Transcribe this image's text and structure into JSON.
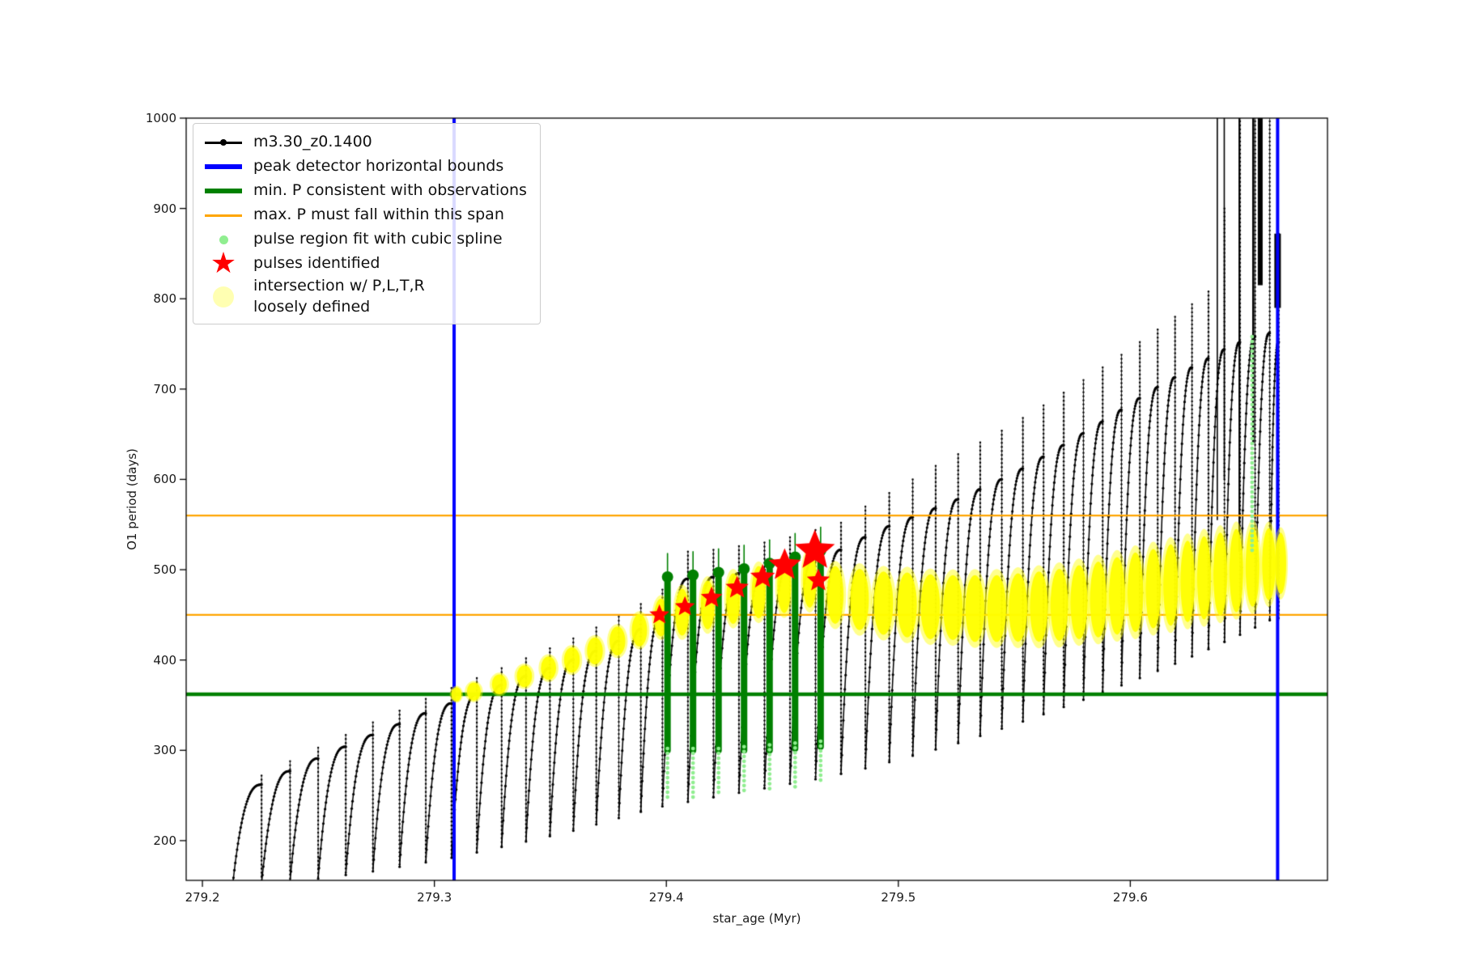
{
  "page": {
    "background": "#ffffff"
  },
  "chart_data": {
    "type": "scatter",
    "title": "",
    "xlabel": "star_age (Myr)",
    "ylabel": "O1 period (days)",
    "xlim": [
      279.193,
      279.685
    ],
    "ylim": [
      156,
      1000
    ],
    "grid": false,
    "xticks": {
      "values": [
        279.2,
        279.3,
        279.4,
        279.5,
        279.6
      ],
      "labels": [
        "279.2",
        "279.3",
        "279.4",
        "279.5",
        "279.6"
      ]
    },
    "yticks": {
      "values": [
        200,
        300,
        400,
        500,
        600,
        700,
        800,
        900,
        1000
      ],
      "labels": [
        "200",
        "300",
        "400",
        "500",
        "600",
        "700",
        "800",
        "900",
        "1000"
      ]
    },
    "colors": {
      "series": "#000000",
      "bounds": "#0000ff",
      "min_p": "#008000",
      "max_p_span": "#ffa500",
      "spline_fit": "#90ee90",
      "pulses": "#ff0000",
      "intersection": "#ffff00"
    },
    "legend": {
      "position": "upper-left",
      "entries": [
        {
          "label": "m3.30_z0.1400",
          "marker": "line-dot",
          "color": "#000000"
        },
        {
          "label": "peak detector horizontal bounds",
          "marker": "thick-line",
          "color": "#0000ff"
        },
        {
          "label": "min. P consistent with observations",
          "marker": "thick-line",
          "color": "#008000"
        },
        {
          "label": "max. P must fall within this span",
          "marker": "line",
          "color": "#ffa500"
        },
        {
          "label": "pulse region fit with cubic spline",
          "marker": "dot",
          "color": "#90ee90"
        },
        {
          "label": "pulses identified",
          "marker": "star",
          "color": "#ff0000"
        },
        {
          "label": "intersection w/ P,L,T,R\nloosely defined",
          "marker": "big-dot",
          "color": "#ffff00"
        }
      ]
    },
    "vlines": [
      {
        "x": 279.3085,
        "color": "#0000ff",
        "lw": 4
      },
      {
        "x": 279.6635,
        "color": "#0000ff",
        "lw": 4
      }
    ],
    "hlines": [
      {
        "y": 560,
        "color": "#ffa500",
        "lw": 2.2
      },
      {
        "y": 450,
        "color": "#ffa500",
        "lw": 2.2
      },
      {
        "y": 362,
        "color": "#008000",
        "lw": 4.5
      }
    ],
    "series": {
      "name": "m3.30_z0.1400",
      "color": "#000000",
      "teeth": [
        [
          279.213,
          279.2255,
          150,
          262,
          272
        ],
        [
          279.2255,
          279.2378,
          152,
          277,
          288
        ],
        [
          279.2378,
          279.2499,
          155,
          291,
          303
        ],
        [
          279.2499,
          279.2618,
          158,
          304,
          317
        ],
        [
          279.2618,
          279.2735,
          162,
          317,
          331
        ],
        [
          279.2735,
          279.285,
          166,
          329,
          344
        ],
        [
          279.285,
          279.2963,
          171,
          341,
          357
        ],
        [
          279.2963,
          279.3074,
          176,
          352,
          369
        ],
        [
          279.3074,
          279.3183,
          181,
          362,
          380
        ],
        [
          279.3183,
          279.329,
          187,
          372,
          391
        ],
        [
          279.329,
          279.3395,
          193,
          382,
          402
        ],
        [
          279.3395,
          279.3498,
          199,
          391,
          413
        ],
        [
          279.3498,
          279.3599,
          205,
          400,
          424
        ],
        [
          279.3599,
          279.3698,
          211,
          410,
          436
        ],
        [
          279.3698,
          279.3795,
          218,
          421,
          448
        ],
        [
          279.3795,
          279.389,
          225,
          434,
          462
        ],
        [
          279.389,
          279.3983,
          232,
          452,
          478
        ],
        [
          279.3983,
          279.4093,
          238,
          490,
          520
        ],
        [
          279.4093,
          279.4203,
          243,
          492,
          522
        ],
        [
          279.4203,
          279.4313,
          248,
          496,
          526
        ],
        [
          279.4313,
          279.4423,
          253,
          500,
          530
        ],
        [
          279.4423,
          279.4533,
          258,
          506,
          536
        ],
        [
          279.4533,
          279.4643,
          263,
          514,
          544
        ],
        [
          279.4643,
          279.4753,
          268,
          522,
          552
        ],
        [
          279.4753,
          279.4858,
          274,
          536,
          570
        ],
        [
          279.4858,
          279.4961,
          280,
          548,
          585
        ],
        [
          279.4961,
          279.5062,
          287,
          558,
          600
        ],
        [
          279.5062,
          279.5161,
          294,
          568,
          615
        ],
        [
          279.5161,
          279.5258,
          301,
          578,
          628
        ],
        [
          279.5258,
          279.5353,
          308,
          589,
          641
        ],
        [
          279.5353,
          279.5446,
          316,
          600,
          654
        ],
        [
          279.5446,
          279.5537,
          324,
          612,
          668
        ],
        [
          279.5537,
          279.5626,
          332,
          625,
          682
        ],
        [
          279.5626,
          279.5713,
          340,
          638,
          696
        ],
        [
          279.5713,
          279.5798,
          348,
          651,
          710
        ],
        [
          279.5798,
          279.5881,
          356,
          664,
          724
        ],
        [
          279.5881,
          279.5962,
          364,
          677,
          738
        ],
        [
          279.5962,
          279.6041,
          372,
          690,
          752
        ],
        [
          279.6041,
          279.6118,
          380,
          702,
          766
        ],
        [
          279.6118,
          279.6193,
          388,
          713,
          780
        ],
        [
          279.6193,
          279.6266,
          396,
          724,
          794
        ],
        [
          279.6266,
          279.6337,
          404,
          734,
          808
        ],
        [
          279.6337,
          279.6406,
          412,
          744,
          900
        ],
        [
          279.6406,
          279.6473,
          420,
          752,
          1010
        ],
        [
          279.6473,
          279.6538,
          428,
          758,
          1010
        ],
        [
          279.6538,
          279.6601,
          436,
          762,
          1010
        ],
        [
          279.6601,
          279.664,
          444,
          752,
          872
        ]
      ],
      "tall_spikes": [
        [
          279.6375,
          555,
          1005,
          1.6
        ],
        [
          279.6405,
          600,
          1005,
          1.6
        ],
        [
          279.647,
          520,
          1005,
          2
        ],
        [
          279.653,
          640,
          1005,
          2.5
        ],
        [
          279.656,
          815,
          1005,
          6
        ],
        [
          279.6635,
          790,
          872,
          8
        ]
      ]
    },
    "pulse_columns": {
      "color": "#008000",
      "columns": [
        [
          279.4005,
          300,
          492
        ],
        [
          279.4115,
          300,
          494
        ],
        [
          279.4225,
          300,
          497
        ],
        [
          279.4335,
          300,
          501
        ],
        [
          279.4445,
          300,
          507
        ],
        [
          279.4555,
          302,
          514
        ],
        [
          279.4665,
          304,
          521
        ]
      ]
    },
    "pulse_region_spline": {
      "color": "#90ee90",
      "segments": [
        [
          279.4005,
          246,
          302
        ],
        [
          279.4115,
          248,
          302
        ],
        [
          279.4225,
          250,
          302
        ],
        [
          279.4335,
          252,
          304
        ],
        [
          279.4445,
          254,
          306
        ],
        [
          279.4555,
          258,
          308
        ],
        [
          279.4665,
          262,
          310
        ],
        [
          279.6525,
          520,
          758
        ]
      ]
    },
    "intersection_blobs": {
      "color": "#ffff00",
      "blobs": [
        [
          279.3095,
          362,
          0.0022,
          8
        ],
        [
          279.317,
          365,
          0.003,
          10
        ],
        [
          279.328,
          373,
          0.0032,
          11
        ],
        [
          279.3388,
          382,
          0.0033,
          12
        ],
        [
          279.3492,
          391,
          0.0033,
          13
        ],
        [
          279.3593,
          400,
          0.0034,
          14
        ],
        [
          279.3692,
          410,
          0.0034,
          15
        ],
        [
          279.3789,
          421,
          0.0034,
          16
        ],
        [
          279.3884,
          433,
          0.0033,
          18
        ],
        [
          279.3977,
          447,
          0.003,
          21
        ],
        [
          279.4068,
          453,
          0.003,
          26
        ],
        [
          279.4178,
          461,
          0.003,
          27
        ],
        [
          279.4288,
          468,
          0.003,
          28
        ],
        [
          279.4398,
          475,
          0.003,
          29
        ],
        [
          279.4508,
          482,
          0.003,
          30
        ],
        [
          279.4618,
          489,
          0.003,
          31
        ],
        [
          279.4728,
          472,
          0.0036,
          32
        ],
        [
          279.4833,
          467,
          0.004,
          34
        ],
        [
          279.4936,
          463,
          0.0042,
          35
        ],
        [
          279.5038,
          461,
          0.0042,
          36
        ],
        [
          279.5138,
          459,
          0.0042,
          36
        ],
        [
          279.5235,
          458,
          0.0042,
          36
        ],
        [
          279.533,
          457,
          0.0041,
          37
        ],
        [
          279.5424,
          457,
          0.0041,
          37
        ],
        [
          279.5516,
          458,
          0.004,
          38
        ],
        [
          279.5606,
          459,
          0.0039,
          39
        ],
        [
          279.5694,
          461,
          0.0038,
          40
        ],
        [
          279.5779,
          464,
          0.0037,
          41
        ],
        [
          279.5862,
          467,
          0.0036,
          42
        ],
        [
          279.5943,
          471,
          0.0035,
          43
        ],
        [
          279.6022,
          475,
          0.0034,
          44
        ],
        [
          279.6099,
          479,
          0.0033,
          44
        ],
        [
          279.6174,
          483,
          0.0032,
          45
        ],
        [
          279.6247,
          487,
          0.0031,
          45
        ],
        [
          279.6318,
          491,
          0.003,
          46
        ],
        [
          279.6388,
          495,
          0.003,
          46
        ],
        [
          279.6457,
          499,
          0.003,
          46
        ],
        [
          279.6527,
          503,
          0.003,
          44
        ],
        [
          279.6597,
          506,
          0.0029,
          40
        ],
        [
          279.6648,
          507,
          0.0024,
          34
        ]
      ]
    },
    "pulses": {
      "color": "#ff0000",
      "stars": [
        [
          279.397,
          450,
          13
        ],
        [
          279.408,
          459,
          13
        ],
        [
          279.4195,
          469,
          14
        ],
        [
          279.4305,
          480,
          15
        ],
        [
          279.4415,
          492,
          16
        ],
        [
          279.451,
          505,
          21
        ],
        [
          279.464,
          521,
          26
        ],
        [
          279.4655,
          488,
          15
        ]
      ]
    }
  }
}
